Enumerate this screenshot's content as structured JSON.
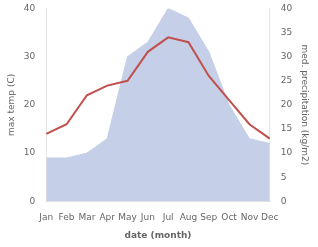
{
  "chart_data": {
    "type": "line",
    "xlabel": "date (month)",
    "ylabel": "max temp (C)",
    "y2label": "med. precipitation (kg/m2)",
    "categories": [
      "Jan",
      "Feb",
      "Mar",
      "Apr",
      "May",
      "Jun",
      "Jul",
      "Aug",
      "Sep",
      "Oct",
      "Nov",
      "Dec"
    ],
    "series": [
      {
        "type": "area",
        "color": "#c5cfe8",
        "axis": "y2",
        "values": [
          9,
          9,
          10,
          13,
          30,
          33,
          40,
          38,
          31,
          20,
          13,
          12
        ]
      },
      {
        "type": "line",
        "color": "#c0504d",
        "values": [
          14,
          16,
          22,
          24,
          25,
          31,
          34,
          33,
          26,
          21,
          16,
          13
        ]
      }
    ],
    "ylim": [
      0,
      40
    ],
    "yticks": [
      0,
      10,
      20,
      30,
      40
    ],
    "y2lim": [
      0,
      40
    ],
    "y2ticks": [
      0,
      5,
      10,
      15,
      20,
      25,
      30,
      35,
      40
    ],
    "grid": false
  }
}
